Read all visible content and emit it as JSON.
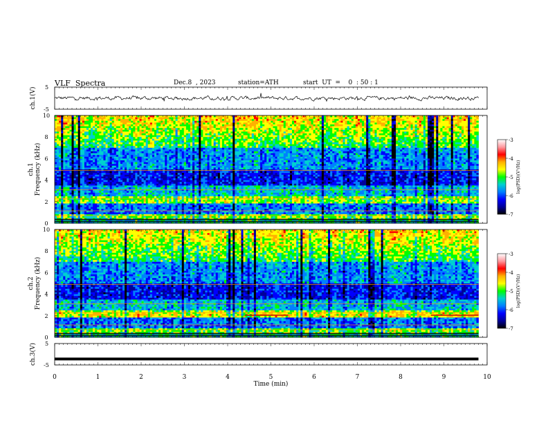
{
  "header": {
    "title": "VLF  Spectra",
    "date": "Dec.8  , 2023",
    "station": "station=ATH",
    "start": "start  UT  =    0  : 50 : 1"
  },
  "chart_data": [
    {
      "type": "line",
      "ylabel": "ch.1(V)",
      "ylim": [
        -5,
        5
      ],
      "yticks": [
        "5",
        "-5"
      ],
      "xlim": [
        0,
        10
      ],
      "series": [
        {
          "values_note_seed": 1,
          "mean": 0.0,
          "noise": 0.6
        }
      ],
      "color": "#000000"
    },
    {
      "type": "heatmap",
      "ylabel": "ch.1\nFrequency (kHz)",
      "ylabel_lines": [
        "ch.1",
        "Frequency (kHz)"
      ],
      "ylim": [
        0,
        10
      ],
      "yticks": [
        "0",
        "2",
        "4",
        "6",
        "8",
        "10"
      ],
      "xlim": [
        0,
        9.8
      ],
      "colorbar": {
        "label": "log(PSD)(V²/Hz)",
        "range": [
          -7,
          -3
        ],
        "ticks": [
          "-3",
          "-4",
          "-5",
          "-6",
          "-7"
        ],
        "colors": [
          "#ffffff",
          "#ff9aa0",
          "#ff0000",
          "#ffb000",
          "#ffff00",
          "#00ff00",
          "#00d0d0",
          "#0080ff",
          "#0000ff",
          "#00009a",
          "#000000"
        ]
      }
    },
    {
      "type": "heatmap",
      "ylabel": "ch.2\nFrequency (kHz)",
      "ylabel_lines": [
        "ch.2",
        "Frequency (kHz)"
      ],
      "ylim": [
        0,
        10
      ],
      "yticks": [
        "0",
        "2",
        "4",
        "6",
        "8",
        "10"
      ],
      "xlim": [
        0,
        9.8
      ],
      "colorbar": {
        "label": "log(PSD)(V²/Hz)",
        "range": [
          -7,
          -3
        ],
        "ticks": [
          "-3",
          "-4",
          "-5",
          "-6",
          "-7"
        ],
        "colors": [
          "#ffffff",
          "#ff9aa0",
          "#ff0000",
          "#ffb000",
          "#ffff00",
          "#00ff00",
          "#00d0d0",
          "#0080ff",
          "#0000ff",
          "#00009a",
          "#000000"
        ]
      }
    },
    {
      "type": "line",
      "ylabel": "ch.3(V)",
      "ylim": [
        -5,
        5
      ],
      "yticks": [
        "5",
        "-5"
      ],
      "xlim": [
        0,
        10
      ],
      "series": [
        {
          "constant": -2.2
        }
      ],
      "xlabel": "Time  (min)",
      "xticks": [
        "0",
        "1",
        "2",
        "3",
        "4",
        "5",
        "6",
        "7",
        "8",
        "9",
        "10"
      ]
    }
  ]
}
